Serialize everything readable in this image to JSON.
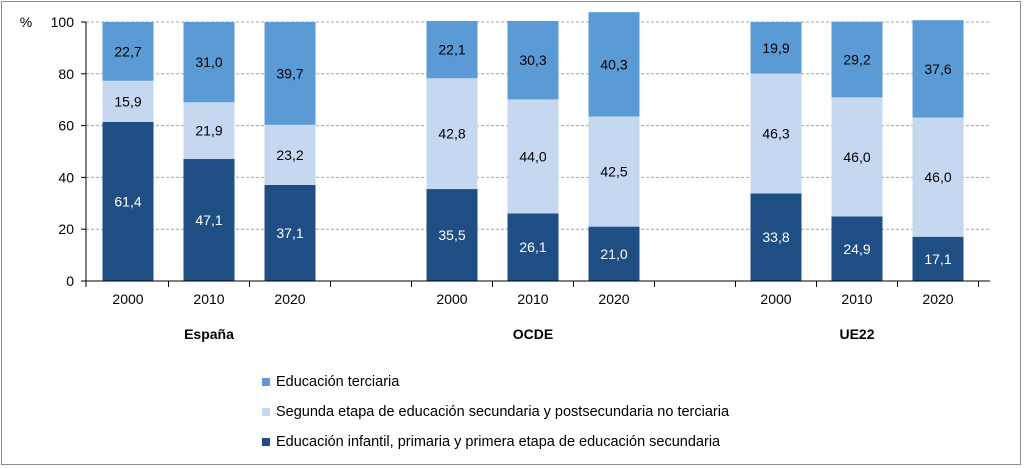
{
  "chart_data": {
    "type": "bar",
    "stacked": true,
    "y_unit_label": "%",
    "ylim": [
      0,
      100
    ],
    "yticks": [
      0,
      20,
      40,
      60,
      80,
      100
    ],
    "grid": true,
    "legend_position": "bottom",
    "groups": [
      {
        "name": "España",
        "categories": [
          "2000",
          "2010",
          "2020"
        ]
      },
      {
        "name": "OCDE",
        "categories": [
          "2000",
          "2010",
          "2020"
        ]
      },
      {
        "name": "UE22",
        "categories": [
          "2000",
          "2010",
          "2020"
        ]
      }
    ],
    "series": [
      {
        "name": "Educación infantil, primaria y primera etapa de educación secundaria",
        "color": "#1f4e84",
        "label_color": "#ffffff",
        "values": [
          61.4,
          47.1,
          37.1,
          35.5,
          26.1,
          21.0,
          33.8,
          24.9,
          17.1
        ],
        "labels": [
          "61,4",
          "47,1",
          "37,1",
          "35,5",
          "26,1",
          "21,0",
          "33,8",
          "24,9",
          "17,1"
        ]
      },
      {
        "name": "Segunda etapa de educación secundaria y postsecundaria no terciaria",
        "color": "#c5d8f0",
        "label_color": "#000000",
        "values": [
          15.9,
          21.9,
          23.2,
          42.8,
          44.0,
          42.5,
          46.3,
          46.0,
          46.0
        ],
        "labels": [
          "15,9",
          "21,9",
          "23,2",
          "42,8",
          "44,0",
          "42,5",
          "46,3",
          "46,0",
          "46,0"
        ]
      },
      {
        "name": "Educación terciaria",
        "color": "#5b9bd5",
        "label_color": "#000000",
        "values": [
          22.7,
          31.0,
          39.7,
          22.1,
          30.3,
          40.3,
          19.9,
          29.2,
          37.6
        ],
        "labels": [
          "22,7",
          "31,0",
          "39,7",
          "22,1",
          "30,3",
          "40,3",
          "19,9",
          "29,2",
          "37,6"
        ]
      }
    ],
    "legend_order": [
      2,
      1,
      0
    ]
  }
}
